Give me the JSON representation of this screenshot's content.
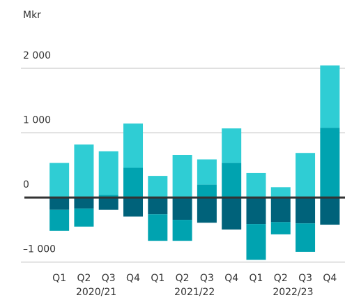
{
  "chart_data": {
    "type": "bar",
    "stacked": true,
    "y_label": "Mkr",
    "categories": [
      "Q1",
      "Q2",
      "Q3",
      "Q4",
      "Q1",
      "Q2",
      "Q3",
      "Q4",
      "Q1",
      "Q2",
      "Q3",
      "Q4"
    ],
    "groups": [
      "2020/21",
      "2021/22",
      "2022/23"
    ],
    "series": [
      {
        "color": "#00a3b0",
        "values": [
          0,
          0,
          40,
          460,
          0,
          0,
          200,
          535,
          0,
          0,
          0,
          1080
        ]
      },
      {
        "color": "#2fcdd4",
        "values": [
          535,
          820,
          675,
          685,
          335,
          660,
          390,
          535,
          380,
          160,
          690,
          965
        ]
      },
      {
        "color": "#00627a",
        "values": [
          -190,
          -170,
          -190,
          -295,
          -260,
          -345,
          -390,
          -495,
          -410,
          -380,
          -400,
          -420
        ]
      },
      {
        "color": "#00a3b0",
        "values": [
          -325,
          -280,
          0,
          0,
          -410,
          -325,
          0,
          0,
          -555,
          -190,
          -440,
          0
        ]
      }
    ],
    "ylim": [
      -1100,
      2150
    ],
    "yticks": [
      {
        "value": -1000,
        "label": "–1 000"
      },
      0,
      {
        "value": 1000,
        "label": "1 000"
      },
      {
        "value": 2000,
        "label": "2 000"
      }
    ],
    "grid": true
  }
}
